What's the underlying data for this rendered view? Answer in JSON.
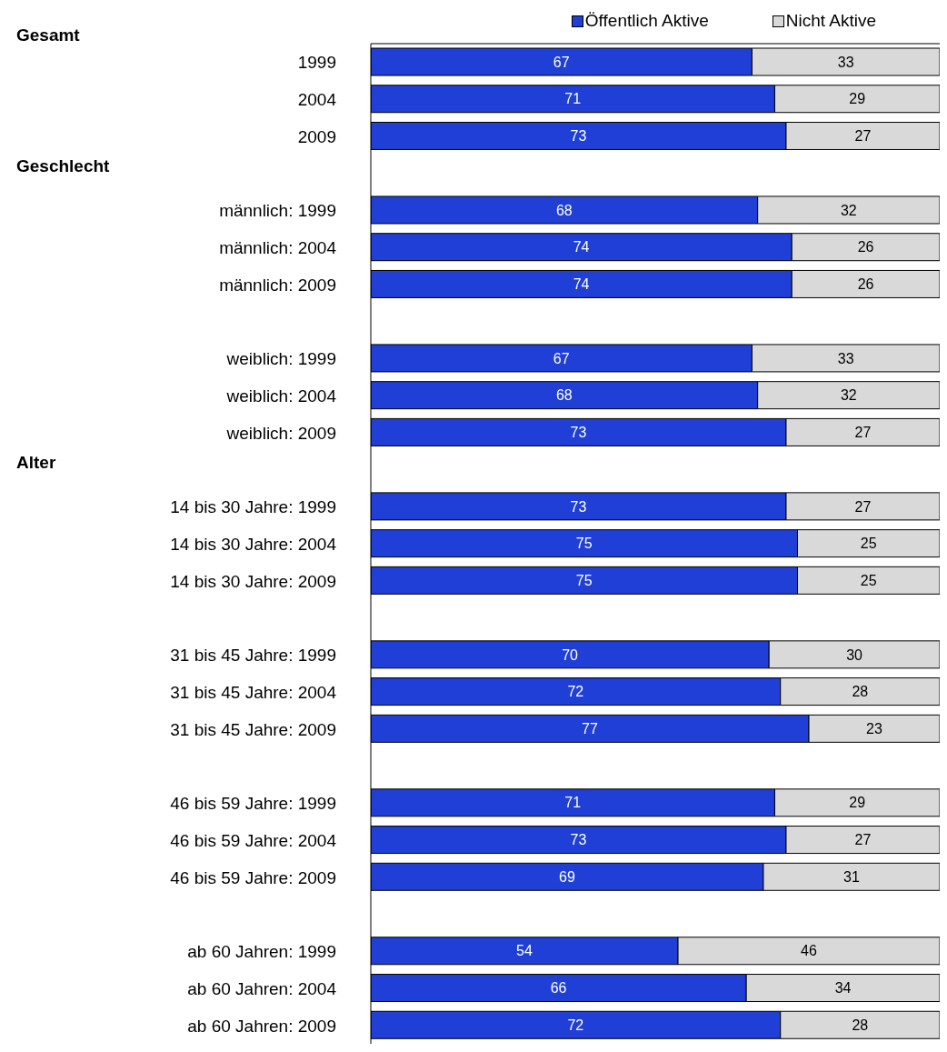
{
  "chart_data": {
    "type": "bar",
    "orientation": "horizontal",
    "stacked": true,
    "categories": [
      "1999",
      "2004",
      "2009",
      null,
      "männlich: 1999",
      "männlich: 2004",
      "männlich: 2009",
      null,
      "weiblich: 1999",
      "weiblich: 2004",
      "weiblich: 2009",
      null,
      "14 bis 30 Jahre: 1999",
      "14 bis 30 Jahre: 2004",
      "14 bis 30 Jahre: 2009",
      null,
      "31 bis 45 Jahre: 1999",
      "31 bis 45 Jahre: 2004",
      "31 bis 45 Jahre: 2009",
      null,
      "46 bis 59 Jahre: 1999",
      "46 bis 59 Jahre: 2004",
      "46 bis 59 Jahre: 2009",
      null,
      "ab 60 Jahren: 1999",
      "ab 60 Jahren: 2004",
      "ab 60 Jahren: 2009"
    ],
    "series": [
      {
        "name": "Öffentlich Aktive",
        "color": "#1f3fd6",
        "values": [
          67,
          71,
          73,
          null,
          68,
          74,
          74,
          null,
          67,
          68,
          73,
          null,
          73,
          75,
          75,
          null,
          70,
          72,
          77,
          null,
          71,
          73,
          69,
          null,
          54,
          66,
          72
        ]
      },
      {
        "name": "Nicht Aktive",
        "color": "#d9d9d9",
        "values": [
          33,
          29,
          27,
          null,
          32,
          26,
          26,
          null,
          33,
          32,
          27,
          null,
          27,
          25,
          25,
          null,
          30,
          28,
          23,
          null,
          29,
          27,
          31,
          null,
          46,
          34,
          28
        ]
      }
    ],
    "xlim": [
      0,
      100
    ],
    "tick_labels": "y",
    "data_labels": true,
    "legend": "top right",
    "annotations": [
      "Gesamt",
      "Geschlecht",
      "Alter"
    ]
  }
}
